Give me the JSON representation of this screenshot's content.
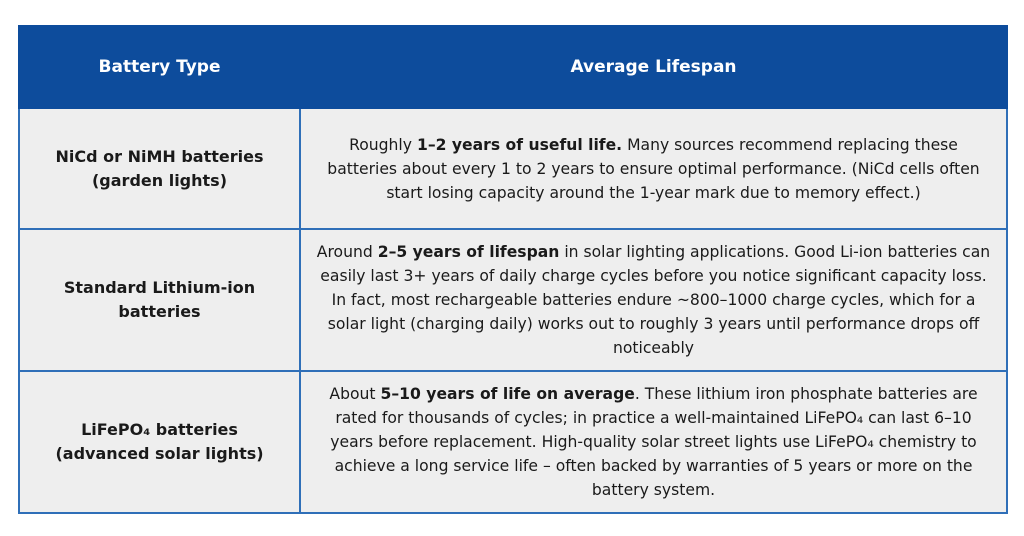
{
  "header": {
    "col1": "Battery Type",
    "col2": "Average Lifespan"
  },
  "rows": [
    {
      "type": "NiCd or NiMH batteries (garden lights)",
      "lead": "Roughly",
      "highlight": "1–2 years of useful life.",
      "rest": "Many sources recommend replacing these batteries about every 1 to 2 years to ensure optimal performance. (NiCd cells often start losing capacity around the 1-year mark due to memory effect.)"
    },
    {
      "type": "Standard Lithium-ion batteries",
      "lead": "Around",
      "highlight": "2–5 years of lifespan",
      "rest": "in solar lighting applications. Good Li-ion batteries can easily last 3+ years of daily charge cycles before you notice significant capacity loss. In fact, most rechargeable batteries endure ~800–1000 charge cycles, which for a solar light (charging daily) works out to roughly 3 years until performance drops off noticeably"
    },
    {
      "type": "LiFePO₄ batteries (advanced solar lights)",
      "lead": "About",
      "highlight": "5–10 years of life on average",
      "rest": ". These lithium iron phosphate batteries are rated for thousands of cycles; in practice a well-maintained LiFePO₄ can last 6–10 years before replacement. High-quality solar street lights use LiFePO₄ chemistry to achieve a long service life – often backed by warranties of 5 years or more on the battery system."
    }
  ]
}
